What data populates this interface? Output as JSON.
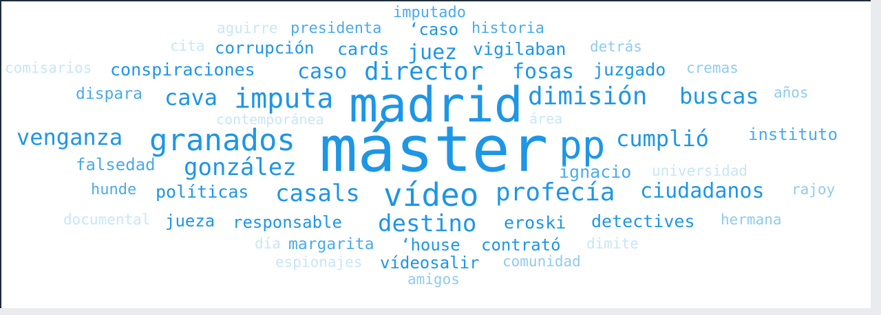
{
  "word_cloud": {
    "words": [
      {
        "text": "máster",
        "tone": 1
      },
      {
        "text": "madrid",
        "tone": 1
      },
      {
        "text": "pp",
        "tone": 1
      },
      {
        "text": "vídeo",
        "tone": 1
      },
      {
        "text": "granados",
        "tone": 1
      },
      {
        "text": "imputa",
        "tone": 1
      },
      {
        "text": "director",
        "tone": 1
      },
      {
        "text": "dimisión",
        "tone": 1
      },
      {
        "text": "profecía",
        "tone": 1
      },
      {
        "text": "casals",
        "tone": 1
      },
      {
        "text": "destino",
        "tone": 1
      },
      {
        "text": "gonzález",
        "tone": 1
      },
      {
        "text": "venganza",
        "tone": 1
      },
      {
        "text": "cumplió",
        "tone": 1
      },
      {
        "text": "buscas",
        "tone": 1
      },
      {
        "text": "cava",
        "tone": 1
      },
      {
        "text": "caso",
        "tone": 1
      },
      {
        "text": "juez",
        "tone": 1
      },
      {
        "text": "fosas",
        "tone": 1
      },
      {
        "text": "ciudadanos",
        "tone": 1
      },
      {
        "text": "conspiraciones",
        "tone": 1
      },
      {
        "text": "juzgado",
        "tone": 1
      },
      {
        "text": "vigilaban",
        "tone": 1
      },
      {
        "text": "cards",
        "tone": 1
      },
      {
        "text": "corrupción",
        "tone": 1
      },
      {
        "text": "políticas",
        "tone": 1
      },
      {
        "text": "falsedad",
        "tone": 2
      },
      {
        "text": "instituto",
        "tone": 2
      },
      {
        "text": "ignacio",
        "tone": 2
      },
      {
        "text": "eroski",
        "tone": 1
      },
      {
        "text": "detectives",
        "tone": 1
      },
      {
        "text": "responsable",
        "tone": 1
      },
      {
        "text": "jueza",
        "tone": 1
      },
      {
        "text": "contrató",
        "tone": 1
      },
      {
        "text": "‘house",
        "tone": 1
      },
      {
        "text": "margarita",
        "tone": 2
      },
      {
        "text": "vídeosalir",
        "tone": 1
      },
      {
        "text": "dispara",
        "tone": 2
      },
      {
        "text": "hunde",
        "tone": 2
      },
      {
        "text": "‘caso",
        "tone": 1
      },
      {
        "text": "presidenta",
        "tone": 2
      },
      {
        "text": "historia",
        "tone": 2
      },
      {
        "text": "imputado",
        "tone": 2
      },
      {
        "text": "detrás",
        "tone": 3
      },
      {
        "text": "cremas",
        "tone": 3
      },
      {
        "text": "años",
        "tone": 3
      },
      {
        "text": "rajoy",
        "tone": 3
      },
      {
        "text": "hermana",
        "tone": 3
      },
      {
        "text": "universidad",
        "tone": 4
      },
      {
        "text": "área",
        "tone": 4
      },
      {
        "text": "contemporánea",
        "tone": 4
      },
      {
        "text": "comunidad",
        "tone": 3
      },
      {
        "text": "dimite",
        "tone": 4
      },
      {
        "text": "amigos",
        "tone": 3
      },
      {
        "text": "aguirre",
        "tone": 4
      },
      {
        "text": "cita",
        "tone": 4
      },
      {
        "text": "comisarios",
        "tone": 4
      },
      {
        "text": "documental",
        "tone": 4
      },
      {
        "text": "día",
        "tone": 4
      },
      {
        "text": "espionajes",
        "tone": 4
      }
    ],
    "tone_colors": {
      "1": "#1e96e6",
      "2": "#4aabea",
      "3": "#8ecbef",
      "4": "#c8e6f6"
    }
  }
}
